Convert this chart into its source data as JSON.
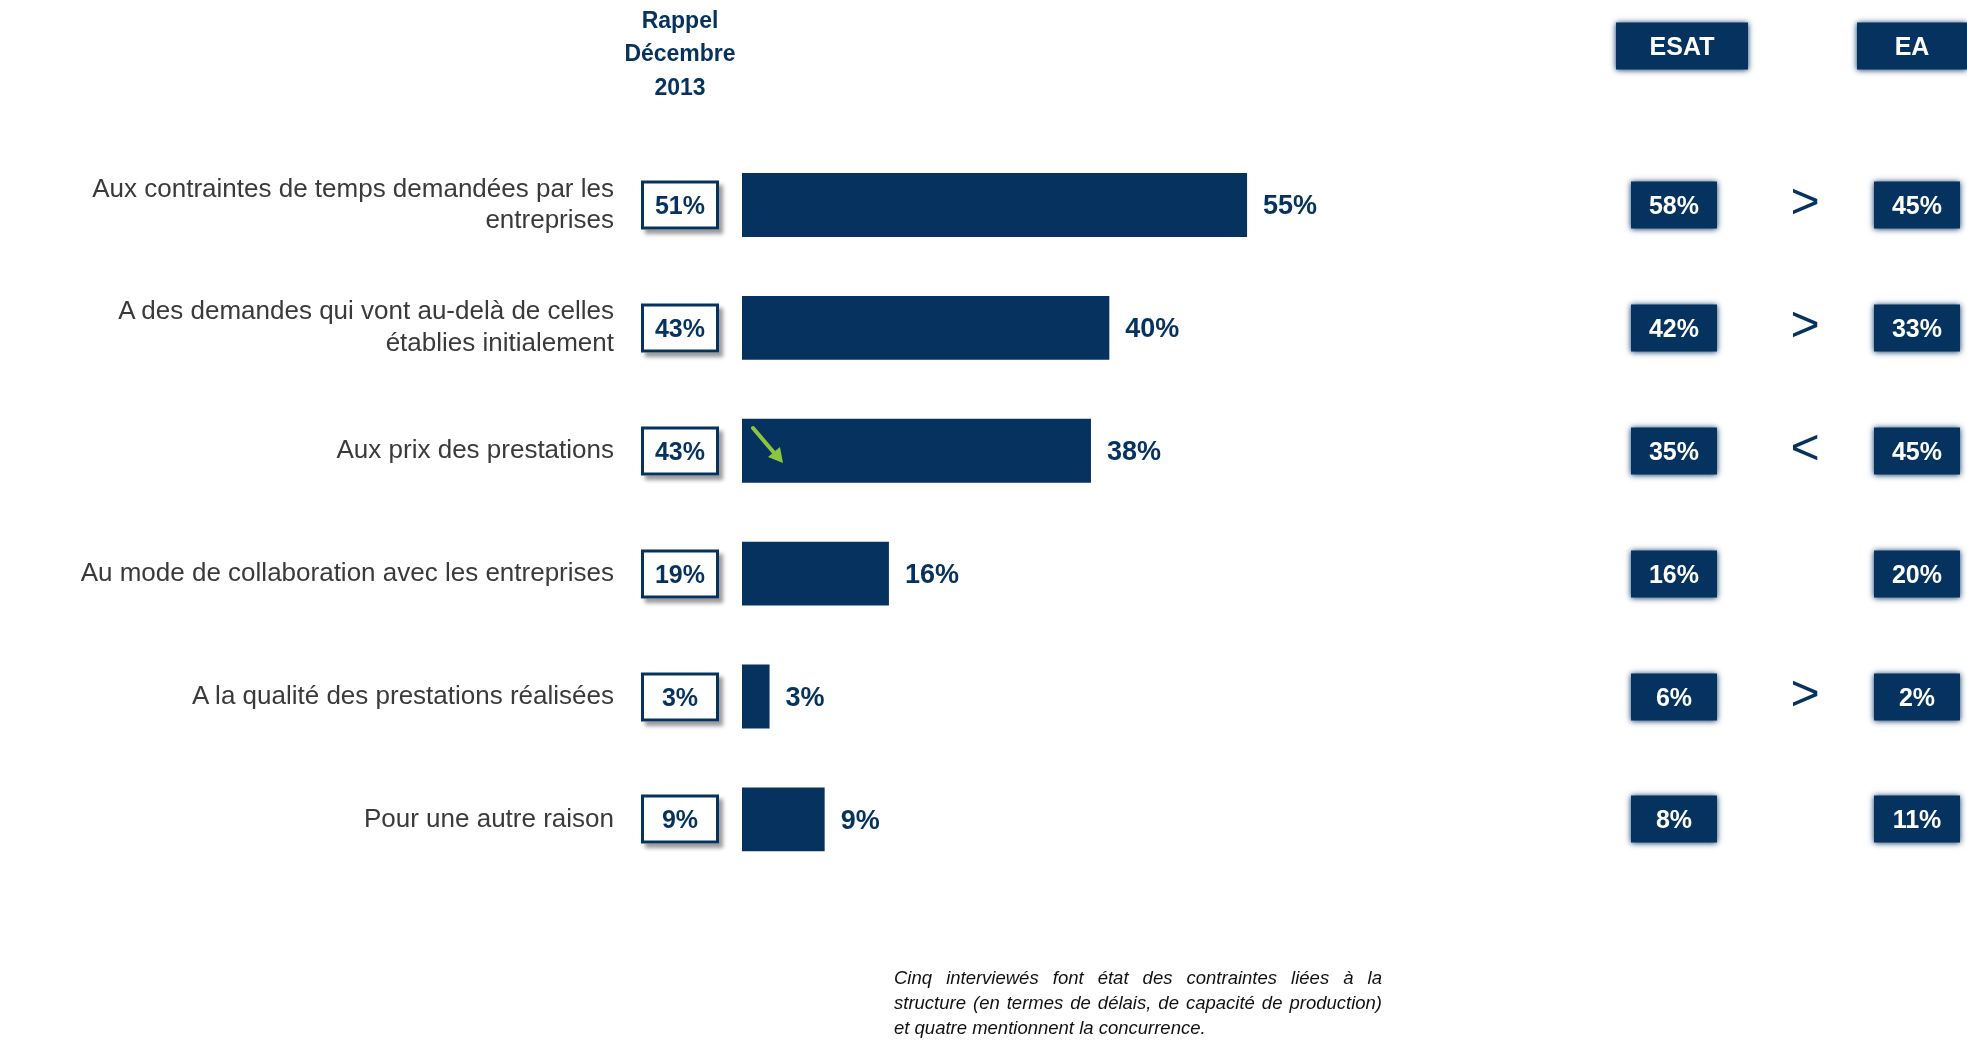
{
  "chart_data": {
    "type": "bar",
    "orientation": "horizontal",
    "categories": [
      "Aux contraintes de temps demandées par les entreprises",
      "A des demandes qui vont au-delà de celles établies initialement",
      "Aux prix des prestations",
      "Au mode de collaboration avec les entreprises",
      "A la qualité des prestations réalisées",
      "Pour une autre raison"
    ],
    "color": "#06325f",
    "values": [
      55,
      40,
      38,
      16,
      3,
      9
    ],
    "value_labels": [
      "55%",
      "40%",
      "38%",
      "16%",
      "3%",
      "9%"
    ],
    "grid": false,
    "legend": false,
    "tick_labels": "y",
    "annotations": [
      "Rappel Décembre 2013",
      "ESAT",
      "EA",
      "Cinq interviewés font état des contraintes liées à la structure (en termes de délais, de capacité de production) et quatre mentionnent la concurrence.",
      "51%",
      "58%",
      ">",
      "45%",
      "43%",
      "42%",
      ">",
      "33%",
      "43%",
      "35%",
      "<",
      "45%",
      "19%",
      "16%",
      "20%",
      "3%",
      "6%",
      ">",
      "2%",
      "9%",
      "8%",
      "11%"
    ]
  }
}
